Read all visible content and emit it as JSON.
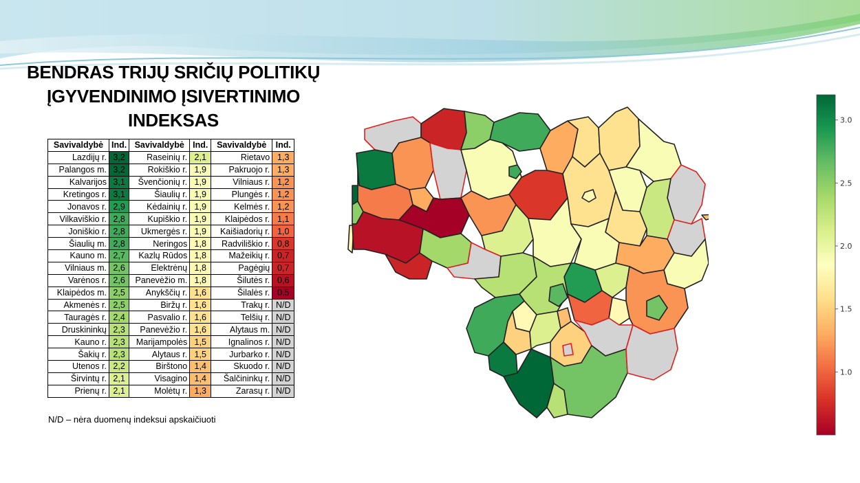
{
  "title": [
    "BENDRAS TRIJŲ SRIČIŲ POLITIKŲ",
    "ĮGYVENDINIMO ĮSIVERTINIMO",
    "INDEKSAS"
  ],
  "table": {
    "headers": [
      "Savivaldybė",
      "Ind.",
      "Savivaldybė",
      "Ind.",
      "Savivaldybė",
      "Ind."
    ],
    "rows": [
      [
        [
          "Lazdijų r.",
          "3,2"
        ],
        [
          "Raseinių r.",
          "2,1"
        ],
        [
          "Rietavo",
          "1,3"
        ]
      ],
      [
        [
          "Palangos m.",
          "3,2"
        ],
        [
          "Rokiškio r.",
          "1,9"
        ],
        [
          "Pakruojo r.",
          "1,3"
        ]
      ],
      [
        [
          "Kalvarijos",
          "3,1"
        ],
        [
          "Švenčionių r.",
          "1,9"
        ],
        [
          "Vilniaus r.",
          "1,2"
        ]
      ],
      [
        [
          "Kretingos r.",
          "3,1"
        ],
        [
          "Šiaulių r.",
          "1,9"
        ],
        [
          "Plungės r.",
          "1,2"
        ]
      ],
      [
        [
          "Jonavos r.",
          "2,9"
        ],
        [
          "Kėdainių r.",
          "1,9"
        ],
        [
          "Kelmės r.",
          "1,2"
        ]
      ],
      [
        [
          "Vilkaviškio r.",
          "2,8"
        ],
        [
          "Kupiškio r.",
          "1,9"
        ],
        [
          "Klaipėdos r.",
          "1,1"
        ]
      ],
      [
        [
          "Joniškio r.",
          "2,8"
        ],
        [
          "Ukmergės r.",
          "1,9"
        ],
        [
          "Kaišiadorių r.",
          "1,0"
        ]
      ],
      [
        [
          "Šiaulių m.",
          "2,8"
        ],
        [
          "Neringos",
          "1,8"
        ],
        [
          "Radviliškio r.",
          "0,8"
        ]
      ],
      [
        [
          "Kauno m.",
          "2,7"
        ],
        [
          "Kazlų Rūdos",
          "1,8"
        ],
        [
          "Mažeikių r.",
          "0,7"
        ]
      ],
      [
        [
          "Vilniaus m.",
          "2,6"
        ],
        [
          "Elektrėnų",
          "1,8"
        ],
        [
          "Pagėgių",
          "0,7"
        ]
      ],
      [
        [
          "Varėnos r.",
          "2,6"
        ],
        [
          "Panevėžio m.",
          "1,8"
        ],
        [
          "Šilutės r.",
          "0,6"
        ]
      ],
      [
        [
          "Klaipėdos m.",
          "2,5"
        ],
        [
          "Anykščių r.",
          "1,6"
        ],
        [
          "Šilalės r.",
          "0,5"
        ]
      ],
      [
        [
          "Akmenės r.",
          "2,5"
        ],
        [
          "Biržų r.",
          "1,6"
        ],
        [
          "Trakų r.",
          "N/D"
        ]
      ],
      [
        [
          "Tauragės r.",
          "2,4"
        ],
        [
          "Pasvalio r.",
          "1,6"
        ],
        [
          "Telšių r.",
          "N/D"
        ]
      ],
      [
        [
          "Druskininkų",
          "2,3"
        ],
        [
          "Panevėžio r.",
          "1,6"
        ],
        [
          "Alytaus m.",
          "N/D"
        ]
      ],
      [
        [
          "Kauno r.",
          "2,3"
        ],
        [
          "Marijampolės",
          "1,5"
        ],
        [
          "Ignalinos r.",
          "N/D"
        ]
      ],
      [
        [
          "Šakių r.",
          "2,3"
        ],
        [
          "Alytaus r.",
          "1,5"
        ],
        [
          "Jurbarko r.",
          "N/D"
        ]
      ],
      [
        [
          "Utenos r.",
          "2,2"
        ],
        [
          "Birštono",
          "1,4"
        ],
        [
          "Skuodo r.",
          "N/D"
        ]
      ],
      [
        [
          "Širvintų r.",
          "2,1"
        ],
        [
          "Visagino",
          "1,4"
        ],
        [
          "Šalčininkų r.",
          "N/D"
        ]
      ],
      [
        [
          "Prienų r.",
          "2,1"
        ],
        [
          "Molėtų r.",
          "1,3"
        ],
        [
          "Zarasų r.",
          "N/D"
        ]
      ]
    ]
  },
  "note": "N/D – nėra duomenų indeksui apskaičiuoti",
  "colors": {
    "nd": "#d3d3d3",
    "boundary": "#222222",
    "nd_border": "#e02020"
  },
  "chart_data": {
    "type": "table",
    "colorscale": "RdYlGn",
    "colorbar_range": [
      0.5,
      3.2
    ],
    "colorbar_ticks": [
      "3.0",
      "2.5",
      "2.0",
      "1.5",
      "1.0"
    ],
    "colorbar_tick_values": [
      3.0,
      2.5,
      2.0,
      1.5,
      1.0
    ],
    "values_by_municipality": {
      "Lazdijų r.": 3.2,
      "Palangos m.": 3.2,
      "Kalvarijos": 3.1,
      "Kretingos r.": 3.1,
      "Jonavos r.": 2.9,
      "Vilkaviškio r.": 2.8,
      "Joniškio r.": 2.8,
      "Šiaulių m.": 2.8,
      "Kauno m.": 2.7,
      "Vilniaus m.": 2.6,
      "Varėnos r.": 2.6,
      "Klaipėdos m.": 2.5,
      "Akmenės r.": 2.5,
      "Tauragės r.": 2.4,
      "Druskininkų": 2.3,
      "Kauno r.": 2.3,
      "Šakių r.": 2.3,
      "Utenos r.": 2.2,
      "Širvintų r.": 2.1,
      "Prienų r.": 2.1,
      "Raseinių r.": 2.1,
      "Rokiškio r.": 1.9,
      "Švenčionių r.": 1.9,
      "Šiaulių r.": 1.9,
      "Kėdainių r.": 1.9,
      "Kupiškio r.": 1.9,
      "Ukmergės r.": 1.9,
      "Neringos": 1.8,
      "Kazlų Rūdos": 1.8,
      "Elektrėnų": 1.8,
      "Panevėžio m.": 1.8,
      "Anykščių r.": 1.6,
      "Biržų r.": 1.6,
      "Pasvalio r.": 1.6,
      "Panevėžio r.": 1.6,
      "Marijampolės": 1.5,
      "Alytaus r.": 1.5,
      "Birštono": 1.4,
      "Visagino": 1.4,
      "Molėtų r.": 1.3,
      "Rietavo": 1.3,
      "Pakruojo r.": 1.3,
      "Vilniaus r.": 1.2,
      "Plungės r.": 1.2,
      "Kelmės r.": 1.2,
      "Klaipėdos r.": 1.1,
      "Kaišiadorių r.": 1.0,
      "Radviliškio r.": 0.8,
      "Mažeikių r.": 0.7,
      "Pagėgių": 0.7,
      "Šilutės r.": 0.6,
      "Šilalės r.": 0.5,
      "Trakų r.": null,
      "Telšių r.": null,
      "Alytaus m.": null,
      "Ignalinos r.": null,
      "Jurbarko r.": null,
      "Skuodo r.": null,
      "Šalčininkų r.": null,
      "Zarasų r.": null
    }
  }
}
